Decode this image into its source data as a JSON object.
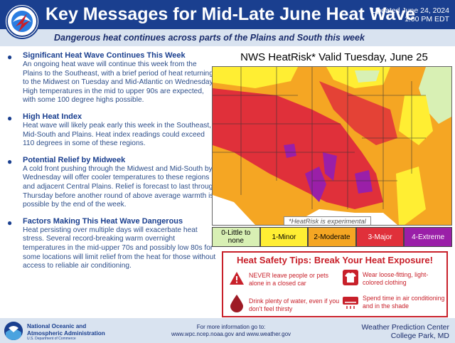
{
  "header": {
    "title": "Key Messages for Mid-Late June Heat Wave",
    "updated_line1": "Updated June 24, 2024",
    "updated_line2": "1:00 PM EDT",
    "subtitle": "Dangerous heat continues across parts of the Plains and South this week",
    "logo_text": "NATIONAL WEATHER SERVICE"
  },
  "messages": [
    {
      "heading": "Significant Heat Wave Continues This Week",
      "body": "An ongoing heat wave will continue this week from the Plains to the Southeast, with a brief period of heat returning to the Midwest on Tuesday and Mid-Atlantic on Wednesday. High temperatures in the mid to upper 90s are expected, with some 100 degree highs possible."
    },
    {
      "heading": "High Heat Index",
      "body": "Heat wave will likely peak early this week in the Southeast, Mid-South and Plains. Heat index readings could exceed 110 degrees in some of these regions."
    },
    {
      "heading": "Potential Relief by Midweek",
      "body": "A cold front pushing through the Midwest and Mid-South by Wednesday will offer cooler temperatures to these regions and adjacent Central Plains. Relief is forecast to last through Thursday before another round of above average warmth is possible by the end of the week."
    },
    {
      "heading": "Factors Making This Heat Wave Dangerous",
      "body": "Heat persisting over multiple days will exacerbate heat stress. Several record-breaking warm overnight temperatures in the mid-upper 70s and possibly low 80s for some locations will limit relief from the heat for those without access to reliable air conditioning."
    }
  ],
  "map": {
    "title": "NWS HeatRisk* Valid Tuesday, June 25",
    "note": "*HeatRisk is experimental",
    "legend": [
      {
        "label": "0-Little to none",
        "color": "#d8f0b4",
        "text_color": "#000000"
      },
      {
        "label": "1-Minor",
        "color": "#ffee33",
        "text_color": "#000000"
      },
      {
        "label": "2-Moderate",
        "color": "#f5a623",
        "text_color": "#000000"
      },
      {
        "label": "3-Major",
        "color": "#e0303a",
        "text_color": "#ffffff"
      },
      {
        "label": "4-Extreme",
        "color": "#9a1fa8",
        "text_color": "#ffffff"
      }
    ]
  },
  "safety": {
    "title": "Heat Safety Tips: Break Your Heat Exposure!",
    "tips": [
      {
        "text": "NEVER leave people or pets alone in a closed car",
        "icon": "warning-icon"
      },
      {
        "text": "Wear loose-fitting, light-colored clothing",
        "icon": "shirt-icon"
      },
      {
        "text": "Drink plenty of water, even if you don't feel thirsty",
        "icon": "water-drop-icon"
      },
      {
        "text": "Spend time in air conditioning and in the shade",
        "icon": "air-conditioner-icon"
      }
    ]
  },
  "footer": {
    "noaa_line1": "National Oceanic and",
    "noaa_line2": "Atmospheric Administration",
    "noaa_dept": "U.S. Department of Commerce",
    "info_line1": "For more information go to:",
    "info_line2": "www.wpc.ncep.noaa.gov and www.weather.gov",
    "wpc_line1": "Weather Prediction Center",
    "wpc_line2": "College Park, MD"
  },
  "colors": {
    "brand_blue": "#1a3f8f",
    "light_blue": "#d9e3f0",
    "alert_red": "#c8202a"
  }
}
